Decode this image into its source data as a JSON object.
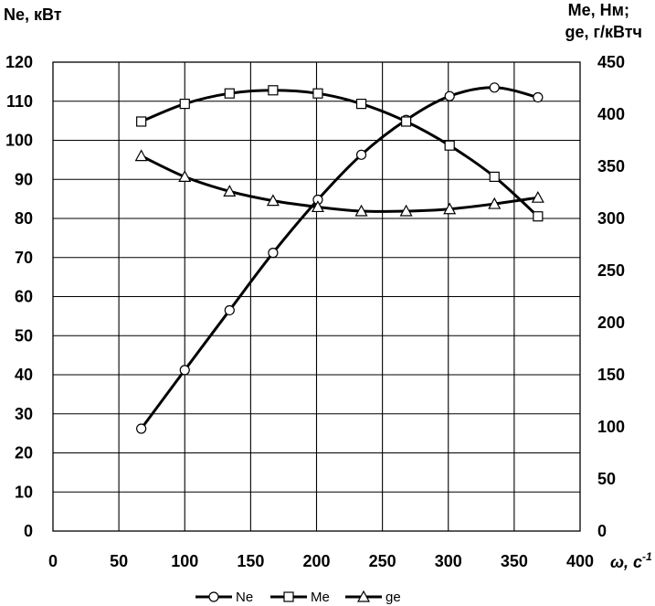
{
  "chart_data": {
    "type": "line",
    "title": "",
    "xlabel": "ω, с-1",
    "xlabel_parts": {
      "main": "ω, с",
      "sup": "-1"
    },
    "ylabel_left": "Ne, кВт",
    "ylabel_right_line1": "Me, Нм;",
    "ylabel_right_line2": "ge,  г/кВтч",
    "xlim": [
      0,
      400
    ],
    "ylim_left": [
      0,
      120
    ],
    "ylim_right": [
      0,
      450
    ],
    "xticks": [
      0,
      50,
      100,
      150,
      200,
      250,
      300,
      350,
      400
    ],
    "yticks_left": [
      0,
      10,
      20,
      30,
      40,
      50,
      60,
      70,
      80,
      90,
      100,
      110,
      120
    ],
    "yticks_right": [
      0,
      50,
      100,
      150,
      200,
      250,
      300,
      350,
      400,
      450
    ],
    "grid": true,
    "legend_position": "bottom",
    "series": [
      {
        "name": "Ne",
        "axis": "left",
        "marker": "circle",
        "x": [
          67,
          100,
          134,
          167,
          201,
          234,
          268,
          301,
          335,
          368
        ],
        "values": [
          26.2,
          41.2,
          56.5,
          71.2,
          84.8,
          96.3,
          105.2,
          111.3,
          113.5,
          111.0
        ]
      },
      {
        "name": "Me",
        "axis": "right",
        "marker": "square",
        "x": [
          67,
          100,
          134,
          167,
          201,
          234,
          268,
          301,
          335,
          368
        ],
        "values": [
          393,
          410,
          420,
          423,
          420,
          410,
          393,
          370,
          340,
          302
        ]
      },
      {
        "name": "ge",
        "axis": "right",
        "marker": "triangle",
        "x": [
          67,
          100,
          134,
          167,
          201,
          234,
          268,
          301,
          335,
          368
        ],
        "values": [
          360,
          340,
          326,
          317,
          311,
          307,
          307,
          309,
          314,
          320
        ]
      }
    ]
  }
}
